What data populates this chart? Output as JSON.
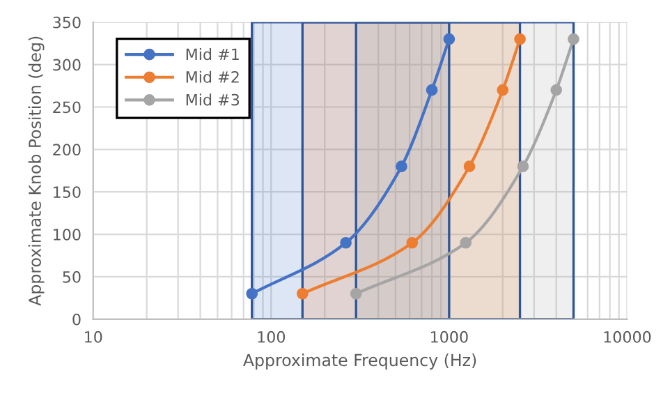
{
  "chart_data": {
    "type": "line",
    "xlabel": "Approximate Frequency (Hz)",
    "ylabel": "Approximate Knob Position (deg)",
    "log": "x",
    "xlim": [
      10,
      10000
    ],
    "xticks": [
      10,
      100,
      1000,
      10000
    ],
    "ylim": [
      0,
      350
    ],
    "yticks": [
      0,
      50,
      100,
      150,
      200,
      250,
      300,
      350
    ],
    "grid": true,
    "legend": "top left",
    "marker": "circle",
    "line_style": "solid",
    "series": [
      {
        "name": "Mid #1",
        "color": "#4472c4",
        "x": [
          78,
          263,
          540,
          800,
          1000
        ],
        "values": [
          30,
          90,
          180,
          270,
          330
        ]
      },
      {
        "name": "Mid #2",
        "color": "#ed7d31",
        "x": [
          150,
          620,
          1300,
          2000,
          2500
        ],
        "values": [
          30,
          90,
          180,
          270,
          330
        ]
      },
      {
        "name": "Mid #3",
        "color": "#a5a5a5",
        "x": [
          300,
          1240,
          2600,
          4000,
          5000
        ],
        "values": [
          30,
          90,
          180,
          270,
          330
        ]
      }
    ],
    "bands": [
      {
        "axis": "x",
        "from": 78,
        "to": 1000,
        "color": "#4472c4"
      },
      {
        "axis": "x",
        "from": 150,
        "to": 2500,
        "color": "#ed7d31"
      },
      {
        "axis": "x",
        "from": 300,
        "to": 5000,
        "color": "#a5a5a5"
      }
    ]
  }
}
